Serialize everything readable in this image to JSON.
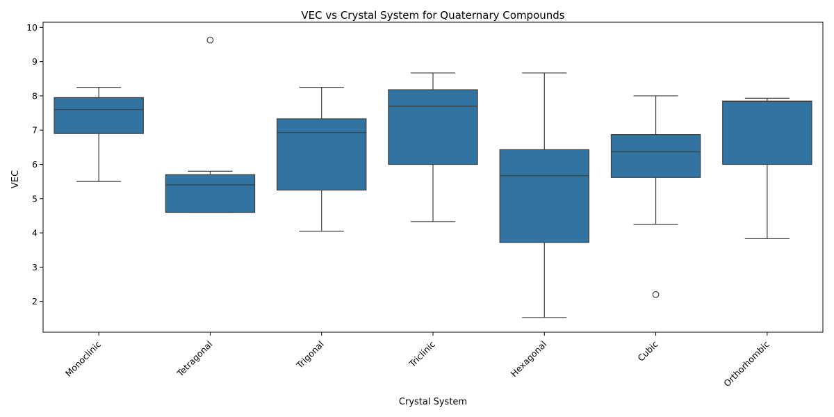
{
  "chart_data": {
    "type": "box",
    "title": "VEC vs Crystal System for Quaternary Compounds",
    "xlabel": "Crystal System",
    "ylabel": "VEC",
    "ylim": [
      1.1,
      10.15
    ],
    "yticks": [
      2,
      3,
      4,
      5,
      6,
      7,
      8,
      9,
      10
    ],
    "x_tick_rotation_deg": 45,
    "grid": false,
    "legend": "none",
    "box_color": "#3274a1",
    "line_color": "#3d3d3d",
    "categories": [
      "Monoclinic",
      "Tetragonal",
      "Trigonal",
      "Triclinic",
      "Hexagonal",
      "Cubic",
      "Orthorhombic"
    ],
    "boxes": [
      {
        "category": "Monoclinic",
        "whisker_low": 5.5,
        "q1": 6.9,
        "median": 7.6,
        "q3": 7.95,
        "whisker_high": 8.25,
        "outliers": []
      },
      {
        "category": "Tetragonal",
        "whisker_low": 4.6,
        "q1": 4.6,
        "median": 5.4,
        "q3": 5.7,
        "whisker_high": 5.8,
        "outliers": [
          9.63
        ]
      },
      {
        "category": "Trigonal",
        "whisker_low": 4.05,
        "q1": 5.25,
        "median": 6.93,
        "q3": 7.33,
        "whisker_high": 8.25,
        "outliers": []
      },
      {
        "category": "Triclinic",
        "whisker_low": 4.33,
        "q1": 6.0,
        "median": 7.7,
        "q3": 8.18,
        "whisker_high": 8.67,
        "outliers": []
      },
      {
        "category": "Hexagonal",
        "whisker_low": 1.53,
        "q1": 3.72,
        "median": 5.67,
        "q3": 6.43,
        "whisker_high": 8.67,
        "outliers": []
      },
      {
        "category": "Cubic",
        "whisker_low": 4.25,
        "q1": 5.62,
        "median": 6.37,
        "q3": 6.87,
        "whisker_high": 8.0,
        "outliers": [
          2.2
        ]
      },
      {
        "category": "Orthorhombic",
        "whisker_low": 3.83,
        "q1": 6.0,
        "median": 7.83,
        "q3": 7.85,
        "whisker_high": 7.93,
        "outliers": []
      }
    ]
  }
}
